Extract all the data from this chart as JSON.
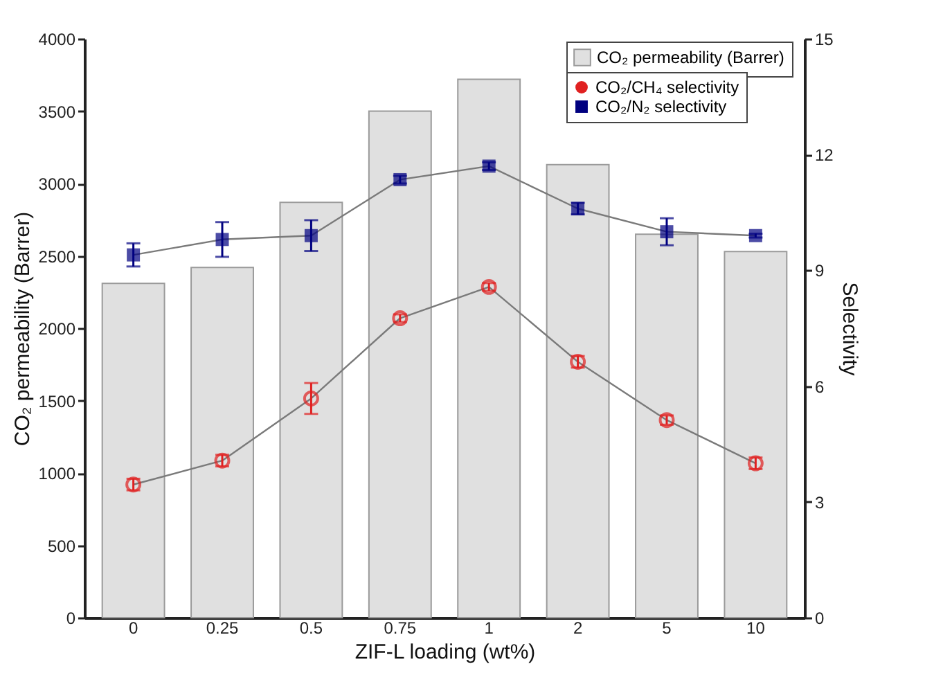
{
  "chart_data": {
    "type": "bar",
    "xlabel": "ZIF-L loading (wt%)",
    "ylabel": "CO₂ permeability (Barrer)",
    "y2label": "Selectivity",
    "categories": [
      "0",
      "0.25",
      "0.5",
      "0.75",
      "1",
      "2",
      "5",
      "10"
    ],
    "series": [
      {
        "name": "CO₂ permeability (Barrer)",
        "color": "#e0e0e0",
        "values": [
          2310,
          2420,
          2870,
          3500,
          3720,
          3130,
          2650,
          2530
        ]
      },
      {
        "name": "CO₂/CH₄ selectivity",
        "type": "line",
        "axis": "y2",
        "marker": "circle",
        "color": "#e02020",
        "values": [
          3.45,
          4.07,
          5.68,
          7.76,
          8.57,
          6.63,
          5.12,
          4.0
        ],
        "errors": [
          0.15,
          0.15,
          0.4,
          0.1,
          0.1,
          0.15,
          0.12,
          0.15
        ]
      },
      {
        "name": "CO₂/N₂ selectivity",
        "type": "line",
        "axis": "y2",
        "marker": "square",
        "color": "#000080",
        "values": [
          9.4,
          9.8,
          9.9,
          11.35,
          11.7,
          10.6,
          10.0,
          9.9
        ],
        "errors": [
          0.3,
          0.45,
          0.4,
          0.1,
          0.1,
          0.15,
          0.35,
          0.05
        ]
      }
    ],
    "ylim": [
      0,
      4000
    ],
    "yticks": [
      0,
      500,
      1000,
      1500,
      2000,
      2500,
      3000,
      3500,
      4000
    ],
    "y2lim": [
      0,
      15
    ],
    "y2ticks": [
      0,
      3,
      6,
      9,
      12,
      15
    ],
    "grid": false,
    "legend": "top right"
  }
}
